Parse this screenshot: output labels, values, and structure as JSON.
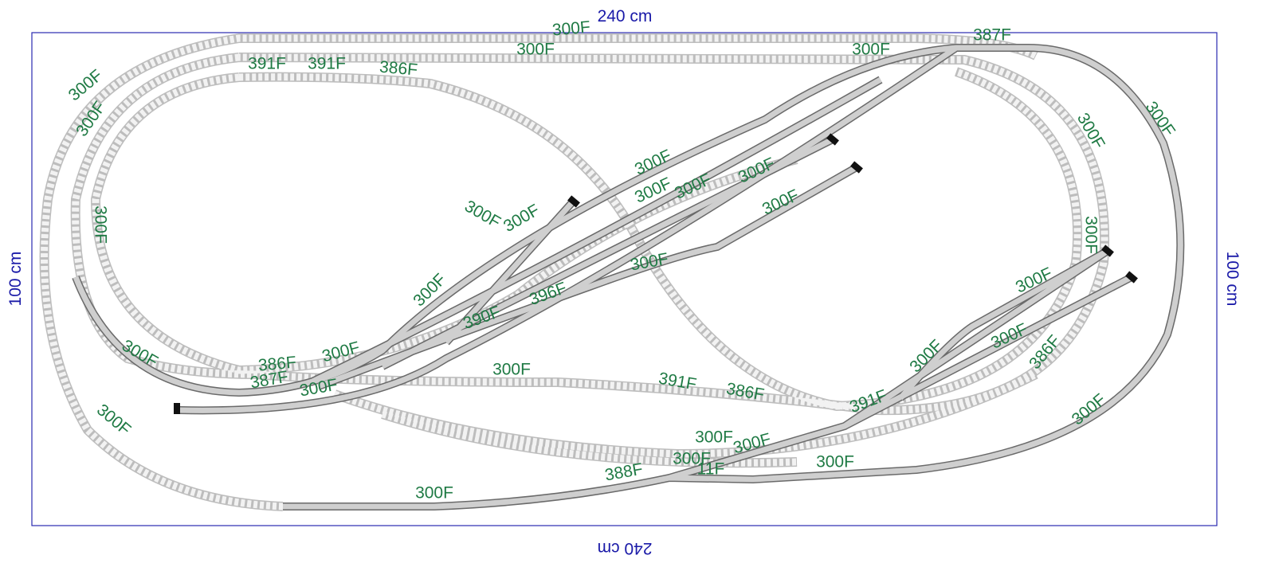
{
  "dimensions": {
    "top": "240 cm",
    "bottom": "240 cm",
    "left": "100 cm",
    "right": "100 cm"
  },
  "track_labels": [
    "300F",
    "300F",
    "300F",
    "387F",
    "391F",
    "391F",
    "386F",
    "300F",
    "300F",
    "300F",
    "300F",
    "300F",
    "300F",
    "300F",
    "300F",
    "300F",
    "300F",
    "300F",
    "300F",
    "300F",
    "300F",
    "396F",
    "390F",
    "300F",
    "386F",
    "387F",
    "300F",
    "300F",
    "300F",
    "300F",
    "391F",
    "386F",
    "300F",
    "300F",
    "300F",
    "386F",
    "300F",
    "300F",
    "300F",
    "300F",
    "300F",
    "11F",
    "388F",
    "300F",
    "300F",
    "391F"
  ]
}
